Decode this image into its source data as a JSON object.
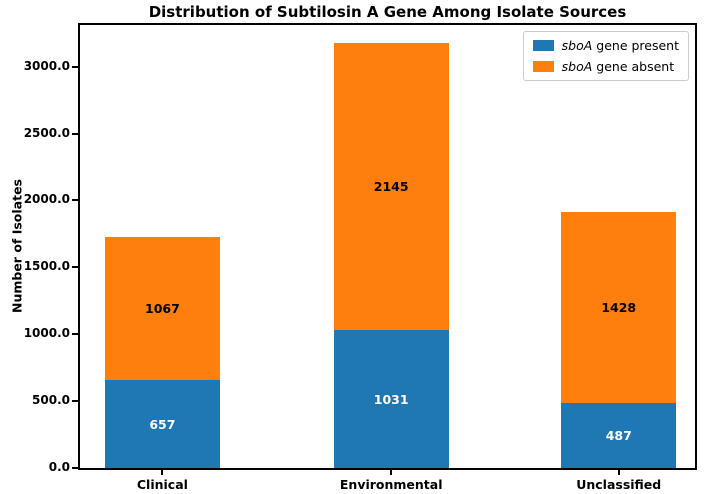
{
  "chart_data": {
    "type": "bar",
    "stacked": true,
    "title": "Distribution of Subtilosin A Gene Among Isolate Sources",
    "xlabel": "",
    "ylabel": "Number of Isolates",
    "categories": [
      "Clinical",
      "Environmental",
      "Unclassified"
    ],
    "series": [
      {
        "name": "sboA gene present",
        "label_italic": "sboA",
        "label_rest": " gene present",
        "color": "#1f77b4",
        "value_label_color": "#ffffff",
        "values": [
          657,
          1031,
          487
        ]
      },
      {
        "name": "sboA gene absent",
        "label_italic": "sboA",
        "label_rest": " gene absent",
        "color": "#ff7f0e",
        "value_label_color": "#000000",
        "values": [
          1067,
          2145,
          1428
        ]
      }
    ],
    "ylim": [
      0,
      3311
    ],
    "yticks": {
      "values": [
        0,
        500,
        1000,
        1500,
        2000,
        2500,
        3000
      ],
      "labels": [
        "0.0",
        "500.0",
        "1000.0",
        "1500.0",
        "2000.0",
        "2500.0",
        "3000.0"
      ]
    },
    "grid": false,
    "legend_position": "upper right"
  }
}
